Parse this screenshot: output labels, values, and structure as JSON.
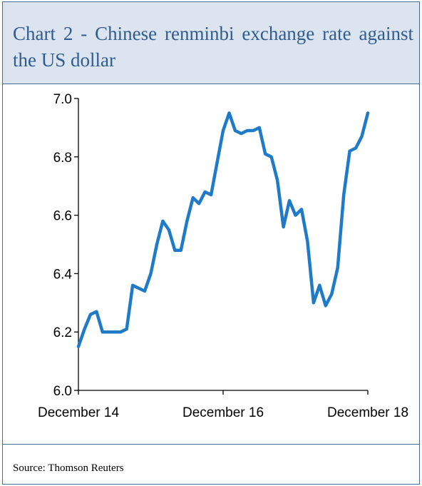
{
  "title": "Chart 2 - Chinese renminbi exchange rate against the US dollar",
  "source": "Source: Thomson Reuters",
  "colors": {
    "line": "#1f7bc8",
    "border": "#4a6b94",
    "header_bg": "#dbe4ef",
    "title": "#2f5c92"
  },
  "chart_data": {
    "type": "line",
    "title": "Chart 2 - Chinese renminbi exchange rate against the US dollar",
    "xlabel": "",
    "ylabel": "",
    "ylim": [
      6.0,
      7.0
    ],
    "yticks": [
      "6.0",
      "6.2",
      "6.4",
      "6.6",
      "6.8",
      "7.0"
    ],
    "xticks": [
      "December 14",
      "December 16",
      "December 18"
    ],
    "xlim": [
      "2014-12",
      "2018-12"
    ],
    "grid": false,
    "legend": "none",
    "series": [
      {
        "x": [
          "2014-12",
          "2015-01",
          "2015-02",
          "2015-03",
          "2015-04",
          "2015-05",
          "2015-06",
          "2015-07",
          "2015-08",
          "2015-09",
          "2015-10",
          "2015-11",
          "2015-12",
          "2016-01",
          "2016-02",
          "2016-03",
          "2016-04",
          "2016-05",
          "2016-06",
          "2016-07",
          "2016-08",
          "2016-09",
          "2016-10",
          "2016-11",
          "2016-12",
          "2017-01",
          "2017-02",
          "2017-03",
          "2017-04",
          "2017-05",
          "2017-06",
          "2017-07",
          "2017-08",
          "2017-09",
          "2017-10",
          "2017-11",
          "2017-12",
          "2018-01",
          "2018-02",
          "2018-03",
          "2018-04",
          "2018-05",
          "2018-06",
          "2018-07",
          "2018-08",
          "2018-09",
          "2018-10",
          "2018-11",
          "2018-12"
        ],
        "values": [
          6.15,
          6.21,
          6.26,
          6.27,
          6.2,
          6.2,
          6.2,
          6.2,
          6.21,
          6.36,
          6.35,
          6.34,
          6.4,
          6.5,
          6.58,
          6.55,
          6.48,
          6.48,
          6.58,
          6.66,
          6.64,
          6.68,
          6.67,
          6.78,
          6.89,
          6.95,
          6.89,
          6.88,
          6.89,
          6.89,
          6.9,
          6.81,
          6.8,
          6.72,
          6.56,
          6.65,
          6.6,
          6.62,
          6.51,
          6.3,
          6.36,
          6.29,
          6.33,
          6.42,
          6.67,
          6.82,
          6.83,
          6.87,
          6.95
        ]
      }
    ]
  }
}
